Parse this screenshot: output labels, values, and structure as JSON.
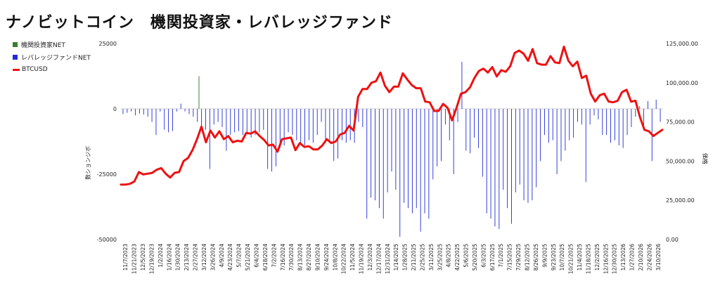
{
  "title": "ナノビットコイン　機関投資家・レバレッジファンド",
  "legend": {
    "items": [
      {
        "label": "機関投資家NET",
        "color": "#3a7d2c",
        "kind": "box"
      },
      {
        "label": "レバレッジファンドNET",
        "color": "#1f2bd9",
        "kind": "box"
      },
      {
        "label": "BTCUSD",
        "color": "#ee1111",
        "kind": "line"
      }
    ]
  },
  "chart_data": {
    "type": "bar+line",
    "ylabel_left": "数ションジボ",
    "ylabel_right": "価格",
    "left_axis": {
      "ticks": [
        "25000",
        "0",
        "-25000",
        "-50000"
      ],
      "ylim": [
        -50000,
        25000
      ]
    },
    "right_axis": {
      "ticks": [
        "125,000.00",
        "100,000.00",
        "75,000.00",
        "50,000.00",
        "25,000.00",
        "0.00"
      ],
      "ylim": [
        0,
        125000
      ]
    },
    "x_tick_labels": [
      "11/7/2023",
      "11/21/2023",
      "12/5/2023",
      "12/19/2023",
      "1/2/2024",
      "1/16/2024",
      "1/30/2024",
      "2/13/2024",
      "2/27/2024",
      "3/12/2024",
      "3/26/2024",
      "4/9/2024",
      "4/23/2024",
      "5/7/2024",
      "5/21/2024",
      "6/4/2024",
      "6/18/2024",
      "7/2/2024",
      "7/16/2024",
      "7/30/2024",
      "8/13/2024",
      "8/27/2024",
      "9/10/2024",
      "9/24/2024",
      "10/8/2024",
      "10/22/2024",
      "11/5/2024",
      "11/19/2024",
      "12/3/2024",
      "12/17/2024",
      "12/31/2024",
      "1/14/2025",
      "1/28/2025",
      "2/11/2025",
      "2/25/2025",
      "3/11/2025",
      "3/25/2025",
      "4/8/2025",
      "4/22/2025",
      "5/6/2025",
      "5/20/2025",
      "6/3/2025",
      "6/17/2025",
      "7/1/2025",
      "7/15/2025",
      "7/29/2025",
      "8/12/2025",
      "8/26/2025",
      "9/9/2025",
      "9/23/2025",
      "10/7/2025",
      "10/21/2025",
      "11/4/2025",
      "11/18/2025",
      "12/2/2025",
      "12/16/2025",
      "12/30/2025",
      "1/13/2026",
      "1/27/2026",
      "2/10/2026",
      "2/24/2026",
      "3/10/2026"
    ],
    "series": [
      {
        "name": "機関投資家NET",
        "color": "#3a7d2c",
        "points": [
          [
            8,
            12500
          ]
        ]
      },
      {
        "name": "レバレッジファンドNET",
        "color": "#1f2bd9",
        "values": [
          -2000,
          -1500,
          -1000,
          -2500,
          -1800,
          -2200,
          -3000,
          -5000,
          -10000,
          -1000,
          -8000,
          -9000,
          -8500,
          -1000,
          2000,
          -1000,
          -2000,
          -3000,
          -5000,
          -7000,
          -8000,
          -23000,
          -6000,
          -5000,
          -7000,
          -16000,
          -10000,
          -9000,
          -8500,
          -10000,
          -9000,
          -11000,
          -10000,
          -9000,
          -8000,
          -23000,
          -24000,
          -22000,
          -15000,
          -14000,
          -9000,
          -10000,
          -12000,
          -13000,
          -14000,
          -12000,
          -13000,
          -10000,
          -5000,
          -13000,
          -12000,
          -20000,
          -19000,
          -12000,
          -13000,
          -12000,
          -13000,
          -5000,
          -7000,
          -42000,
          -34000,
          -35000,
          -38000,
          -42000,
          -32000,
          -24000,
          -31000,
          -49000,
          -36000,
          -38000,
          -40000,
          -38000,
          -47000,
          -40000,
          -42000,
          -27000,
          -22000,
          -20000,
          -6000,
          -12000,
          -25000,
          -5000,
          18000,
          -16000,
          -17000,
          -11000,
          -15000,
          -26000,
          -40000,
          -42000,
          -45000,
          -46000,
          -31000,
          -38000,
          -44000,
          -32000,
          -29000,
          -35000,
          -36000,
          -35000,
          -30000,
          -20000,
          -10000,
          -13000,
          -12000,
          -25000,
          -20000,
          -16000,
          -12000,
          -11000,
          -5000,
          -6000,
          -28000,
          -6000,
          -2500,
          -4000,
          -10000,
          -10000,
          -13000,
          -12000,
          -14000,
          -15000,
          -10000,
          -7000,
          -3000,
          1000,
          -8000,
          3000,
          -20000,
          3500,
          -5000
        ]
      },
      {
        "name": "BTCUSD",
        "color": "#ee1111",
        "values": [
          35000,
          35000,
          35500,
          37000,
          43000,
          41500,
          42000,
          42500,
          44500,
          45500,
          42000,
          39500,
          42500,
          43000,
          50000,
          52000,
          57000,
          64000,
          72000,
          62000,
          69500,
          65000,
          69000,
          64000,
          66000,
          62000,
          63000,
          62500,
          68000,
          67500,
          69000,
          66000,
          63500,
          60000,
          60500,
          56000,
          64000,
          64500,
          65000,
          57000,
          61500,
          59000,
          59500,
          57500,
          57500,
          60000,
          64000,
          61500,
          62500,
          67000,
          68000,
          72500,
          69500,
          91000,
          96000,
          96000,
          100000,
          101000,
          106500,
          98000,
          94000,
          97500,
          97500,
          106000,
          102000,
          98500,
          96500,
          96500,
          88000,
          87500,
          82000,
          82000,
          86500,
          84000,
          76000,
          84000,
          93000,
          94000,
          97000,
          103000,
          107500,
          109000,
          106500,
          110000,
          104000,
          108000,
          107000,
          110500,
          119000,
          120500,
          118500,
          114000,
          121500,
          112500,
          111500,
          111500,
          117000,
          113000,
          112500,
          123000,
          114000,
          110500,
          113500,
          103000,
          104500,
          93000,
          88000,
          92000,
          93000,
          88000,
          87500,
          88500,
          94000,
          95500,
          88000,
          88500,
          78000,
          70000,
          69000,
          66000,
          68000,
          70000
        ]
      }
    ]
  }
}
